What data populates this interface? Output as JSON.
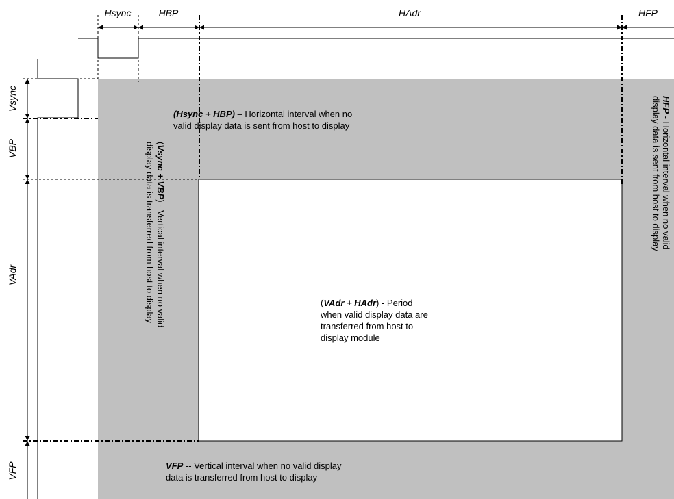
{
  "top_labels": {
    "hsync": "Hsync",
    "hbp": "HBP",
    "hadr": "HAdr",
    "hfp": "HFP"
  },
  "side_labels": {
    "vsync": "Vsync",
    "vbp": "VBP",
    "vadr": "VAdr",
    "vfp": "VFP"
  },
  "descriptions": {
    "hsync_hbp": {
      "term": "(Hsync + HBP)",
      "line1": " – Horizontal interval when no",
      "line2": "valid display data is sent from host to display"
    },
    "hfp": {
      "term": "HFP",
      "line1": " - Horizontal interval when no valid",
      "line2": "display data is sent from host to display"
    },
    "vsync_vbp": {
      "open": "(",
      "term": "Vsync + VBP",
      "line1": ") - Vertical interval when no valid",
      "line2": "display data is transferred from host to display"
    },
    "active": {
      "open": "(",
      "term": "VAdr + HAdr",
      "line1": ") - Period",
      "line2": "when valid display data are",
      "line3": "transferred from host to",
      "line4": "display module"
    },
    "vfp": {
      "term": "VFP",
      "line1": " -- Vertical interval when no valid display",
      "line2": "data is transferred from host to display"
    }
  },
  "colors": {
    "blanking": "#c0c0c0",
    "active": "#ffffff",
    "line": "#000000"
  }
}
